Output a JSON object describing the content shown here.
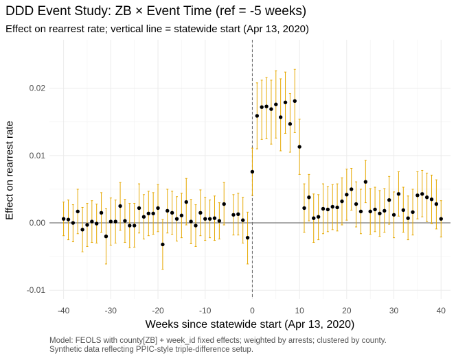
{
  "title": "DDD Event Study: ZB × Event Time (ref = -5 weeks)",
  "subtitle": "Effect on rearrest rate; vertical line = statewide start (Apr 13, 2020)",
  "caption": [
    "Model: FEOLS with county[ZB] + week_id fixed effects; weighted by arrests; clustered by county.",
    "Synthetic data reflecting PPIC-style triple-difference setup."
  ],
  "chart_data": {
    "type": "scatter",
    "title": "DDD Event Study: ZB × Event Time (ref = -5 weeks)",
    "subtitle": "Effect on rearrest rate; vertical line = statewide start (Apr 13, 2020)",
    "xlabel": "Weeks since statewide start (Apr 13, 2020)",
    "ylabel": "Effect on rearrest rate",
    "xlim": [
      -43,
      42
    ],
    "ylim": [
      -0.0113,
      0.0272
    ],
    "xticks": [
      -40,
      -30,
      -20,
      -10,
      0,
      10,
      20,
      30,
      40
    ],
    "xtick_labels": [
      "-40",
      "-30",
      "-20",
      "-10",
      "0",
      "10",
      "20",
      "30",
      "40"
    ],
    "yticks": [
      -0.01,
      0,
      0.01,
      0.02
    ],
    "ytick_labels": [
      "-0.01",
      "0.00",
      "0.01",
      "0.02"
    ],
    "grid": true,
    "hline": 0,
    "vline": 0,
    "point_color": "#000000",
    "errorbar_color": "#E6A800",
    "points": [
      {
        "x": -40,
        "y": 0.0006,
        "lo": -0.0019,
        "hi": 0.0031
      },
      {
        "x": -39,
        "y": 0.0005,
        "lo": -0.0025,
        "hi": 0.0034
      },
      {
        "x": -38,
        "y": 0.0,
        "lo": -0.0028,
        "hi": 0.0027
      },
      {
        "x": -37,
        "y": 0.0017,
        "lo": -0.0016,
        "hi": 0.005
      },
      {
        "x": -36,
        "y": -0.001,
        "lo": -0.0043,
        "hi": 0.0023
      },
      {
        "x": -35,
        "y": -0.0003,
        "lo": -0.0035,
        "hi": 0.0029
      },
      {
        "x": -34,
        "y": 0.0002,
        "lo": -0.0029,
        "hi": 0.0033
      },
      {
        "x": -33,
        "y": -0.0001,
        "lo": -0.003,
        "hi": 0.0028
      },
      {
        "x": -32,
        "y": 0.0015,
        "lo": -0.0014,
        "hi": 0.0045
      },
      {
        "x": -31,
        "y": -0.002,
        "lo": -0.0061,
        "hi": 0.0021
      },
      {
        "x": -30,
        "y": 0.0002,
        "lo": -0.0033,
        "hi": 0.0037
      },
      {
        "x": -29,
        "y": 0.0002,
        "lo": -0.003,
        "hi": 0.0034
      },
      {
        "x": -28,
        "y": 0.0025,
        "lo": -0.0011,
        "hi": 0.006
      },
      {
        "x": -27,
        "y": 0.0003,
        "lo": -0.0029,
        "hi": 0.0035
      },
      {
        "x": -26,
        "y": -0.0004,
        "lo": -0.0037,
        "hi": 0.0029
      },
      {
        "x": -25,
        "y": -0.0004,
        "lo": -0.0036,
        "hi": 0.0029
      },
      {
        "x": -24,
        "y": 0.0022,
        "lo": -0.0015,
        "hi": 0.0058
      },
      {
        "x": -23,
        "y": 0.0009,
        "lo": -0.0024,
        "hi": 0.0042
      },
      {
        "x": -22,
        "y": 0.0014,
        "lo": -0.0019,
        "hi": 0.0047
      },
      {
        "x": -21,
        "y": 0.0014,
        "lo": -0.0017,
        "hi": 0.0045
      },
      {
        "x": -20,
        "y": 0.0022,
        "lo": -0.0013,
        "hi": 0.0057
      },
      {
        "x": -19,
        "y": -0.0032,
        "lo": -0.0069,
        "hi": 0.0005
      },
      {
        "x": -18,
        "y": 0.0018,
        "lo": -0.0015,
        "hi": 0.005
      },
      {
        "x": -17,
        "y": 0.0015,
        "lo": -0.0017,
        "hi": 0.0047
      },
      {
        "x": -16,
        "y": 0.0006,
        "lo": -0.0027,
        "hi": 0.0039
      },
      {
        "x": -15,
        "y": 0.0011,
        "lo": -0.0022,
        "hi": 0.0044
      },
      {
        "x": -14,
        "y": 0.0031,
        "lo": -0.0003,
        "hi": 0.0066
      },
      {
        "x": -13,
        "y": 0.0002,
        "lo": -0.0031,
        "hi": 0.0035
      },
      {
        "x": -12,
        "y": -0.0004,
        "lo": -0.0035,
        "hi": 0.0027
      },
      {
        "x": -11,
        "y": 0.0015,
        "lo": -0.0019,
        "hi": 0.0049
      },
      {
        "x": -10,
        "y": 0.0006,
        "lo": -0.0026,
        "hi": 0.0038
      },
      {
        "x": -9,
        "y": 0.0006,
        "lo": -0.0022,
        "hi": 0.0034
      },
      {
        "x": -8,
        "y": 0.0007,
        "lo": -0.0026,
        "hi": 0.004
      },
      {
        "x": -7,
        "y": 0.0003,
        "lo": -0.0024,
        "hi": 0.003
      },
      {
        "x": -6,
        "y": 0.0028,
        "lo": -0.0003,
        "hi": 0.006
      },
      {
        "x": -4,
        "y": 0.0012,
        "lo": -0.0018,
        "hi": 0.0042
      },
      {
        "x": -3,
        "y": 0.0013,
        "lo": -0.0018,
        "hi": 0.0044
      },
      {
        "x": -2,
        "y": 0.0004,
        "lo": -0.003,
        "hi": 0.0038
      },
      {
        "x": -1,
        "y": -0.0022,
        "lo": -0.0061,
        "hi": 0.0016
      },
      {
        "x": 0,
        "y": 0.0076,
        "lo": 0.0041,
        "hi": 0.0111
      },
      {
        "x": 1,
        "y": 0.0159,
        "lo": 0.011,
        "hi": 0.0208
      },
      {
        "x": 2,
        "y": 0.0172,
        "lo": 0.0124,
        "hi": 0.0212
      },
      {
        "x": 3,
        "y": 0.0173,
        "lo": 0.0125,
        "hi": 0.0216
      },
      {
        "x": 4,
        "y": 0.0169,
        "lo": 0.0117,
        "hi": 0.0212
      },
      {
        "x": 5,
        "y": 0.0176,
        "lo": 0.0126,
        "hi": 0.0226
      },
      {
        "x": 6,
        "y": 0.0157,
        "lo": 0.0107,
        "hi": 0.0214
      },
      {
        "x": 7,
        "y": 0.0179,
        "lo": 0.0133,
        "hi": 0.0224
      },
      {
        "x": 8,
        "y": 0.0147,
        "lo": 0.0105,
        "hi": 0.0192
      },
      {
        "x": 9,
        "y": 0.0181,
        "lo": 0.0134,
        "hi": 0.0228
      },
      {
        "x": 10,
        "y": 0.0113,
        "lo": 0.0072,
        "hi": 0.0154
      },
      {
        "x": 11,
        "y": 0.0022,
        "lo": -0.0014,
        "hi": 0.0058
      },
      {
        "x": 12,
        "y": 0.0038,
        "lo": 0.0003,
        "hi": 0.0072
      },
      {
        "x": 13,
        "y": 0.0007,
        "lo": -0.0029,
        "hi": 0.0043
      },
      {
        "x": 14,
        "y": 0.0009,
        "lo": -0.0025,
        "hi": 0.0042
      },
      {
        "x": 15,
        "y": 0.0021,
        "lo": -0.0016,
        "hi": 0.0058
      },
      {
        "x": 16,
        "y": 0.002,
        "lo": -0.0013,
        "hi": 0.0054
      },
      {
        "x": 17,
        "y": 0.0024,
        "lo": -0.001,
        "hi": 0.0057
      },
      {
        "x": 18,
        "y": 0.0023,
        "lo": -0.0012,
        "hi": 0.0058
      },
      {
        "x": 19,
        "y": 0.0032,
        "lo": -0.0003,
        "hi": 0.0067
      },
      {
        "x": 20,
        "y": 0.0042,
        "lo": 0.0004,
        "hi": 0.008
      },
      {
        "x": 21,
        "y": 0.005,
        "lo": 0.0019,
        "hi": 0.0081
      },
      {
        "x": 22,
        "y": 0.0028,
        "lo": -0.0006,
        "hi": 0.0061
      },
      {
        "x": 23,
        "y": 0.0017,
        "lo": -0.0016,
        "hi": 0.005
      },
      {
        "x": 24,
        "y": 0.0061,
        "lo": 0.003,
        "hi": 0.0093
      },
      {
        "x": 25,
        "y": 0.0017,
        "lo": -0.0017,
        "hi": 0.0051
      },
      {
        "x": 26,
        "y": 0.002,
        "lo": -0.0013,
        "hi": 0.0053
      },
      {
        "x": 27,
        "y": 0.0014,
        "lo": -0.002,
        "hi": 0.0048
      },
      {
        "x": 28,
        "y": 0.0018,
        "lo": -0.0014,
        "hi": 0.0051
      },
      {
        "x": 29,
        "y": 0.0034,
        "lo": -0.0002,
        "hi": 0.0069
      },
      {
        "x": 30,
        "y": 0.0012,
        "lo": -0.0022,
        "hi": 0.0046
      },
      {
        "x": 31,
        "y": 0.0043,
        "lo": 0.001,
        "hi": 0.0076
      },
      {
        "x": 32,
        "y": 0.0019,
        "lo": -0.0014,
        "hi": 0.0053
      },
      {
        "x": 33,
        "y": 0.0007,
        "lo": -0.0025,
        "hi": 0.004
      },
      {
        "x": 34,
        "y": 0.0016,
        "lo": -0.0018,
        "hi": 0.005
      },
      {
        "x": 35,
        "y": 0.0041,
        "lo": 0.0006,
        "hi": 0.0076
      },
      {
        "x": 36,
        "y": 0.0043,
        "lo": 0.0009,
        "hi": 0.0078
      },
      {
        "x": 37,
        "y": 0.0038,
        "lo": 0.0002,
        "hi": 0.0074
      },
      {
        "x": 38,
        "y": 0.0035,
        "lo": -0.0001,
        "hi": 0.0071
      },
      {
        "x": 39,
        "y": 0.0028,
        "lo": -0.0009,
        "hi": 0.0064
      },
      {
        "x": 40,
        "y": 0.0006,
        "lo": -0.0021,
        "hi": 0.0033
      }
    ]
  }
}
